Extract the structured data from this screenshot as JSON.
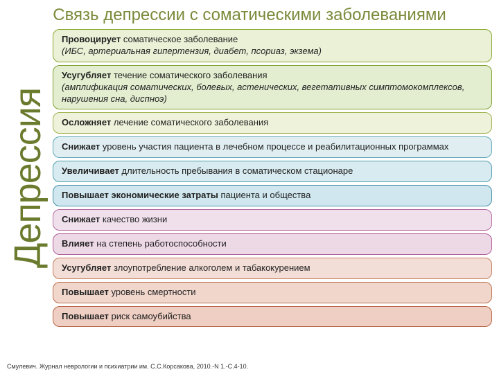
{
  "title": "Связь депрессии с соматическими заболеваниями",
  "sidebar_label": "Депрессия",
  "colors": {
    "title_color": "#7a8a3a",
    "sidebar_color": "#6b7b2e"
  },
  "boxes": [
    {
      "bold": "Провоцирует",
      "rest": " соматическое заболевание",
      "italic_line": "(ИБС, артериальная гипертензия, диабет, псориаз, экзема)",
      "bg": "#eaf1d6",
      "border": "#88a82f"
    },
    {
      "bold": "Усугубляет",
      "rest": " течение соматического заболевания",
      "italic_line": "(амплификация соматических, болевых, астенических, вегетативных симптомокомплексов, нарушения сна, диспноэ)",
      "bg": "#e3eed0",
      "border": "#7ca02e"
    },
    {
      "bold": "Осложняет",
      "rest": " лечение соматического заболевания",
      "bg": "#eef2da",
      "border": "#9cb24c"
    },
    {
      "bold": "Снижает",
      "rest": " уровень участия пациента в лечебном процессе и реабилитационных программах",
      "bg": "#e0eef2",
      "border": "#5ca8b8"
    },
    {
      "bold": "Увеличивает",
      "rest": " длительность пребывания в соматическом стационаре",
      "bg": "#d8ebf0",
      "border": "#4e9fb0"
    },
    {
      "bold": "Повышает экономические затраты",
      "rest": " пациента и общества",
      "bg": "#d0e7ef",
      "border": "#4490a6"
    },
    {
      "bold": "Снижает",
      "rest": " качество жизни",
      "bg": "#f0e0ec",
      "border": "#b66aa0"
    },
    {
      "bold": "Влияет",
      "rest": " на степень работоспособности",
      "bg": "#edd8e6",
      "border": "#b05c97"
    },
    {
      "bold": "Усугубляет",
      "rest": " злоупотребление алкоголем и табакокурением",
      "bg": "#f3ded7",
      "border": "#c27d5e"
    },
    {
      "bold": "Повышает",
      "rest": " уровень смертности",
      "bg": "#f1d6cc",
      "border": "#bd6f4e"
    },
    {
      "bold": "Повышает",
      "rest": " риск самоубийства",
      "bg": "#efcfc3",
      "border": "#b86444"
    }
  ],
  "citation": "Смулевич. Журнал неврологии и психиатрии им. С.С.Корсакова, 2010.-N 1.-С.4-10."
}
